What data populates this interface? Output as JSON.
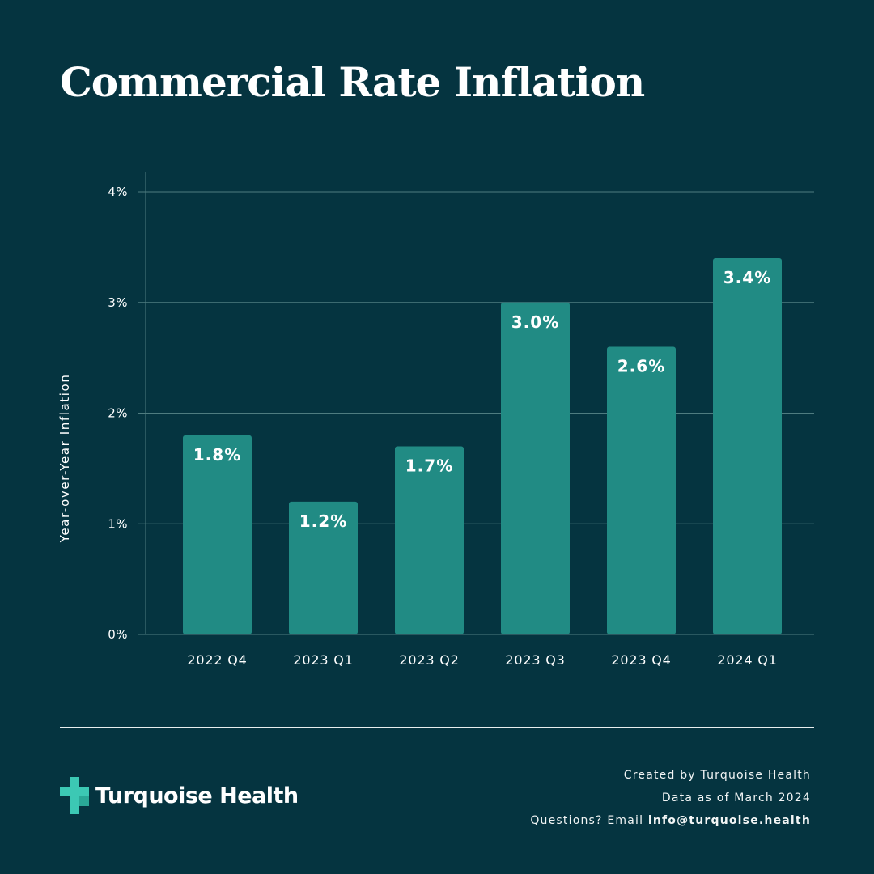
{
  "chart_data": {
    "type": "bar",
    "title": "Commercial Rate Inflation",
    "xlabel": "",
    "ylabel": "Year-over-Year Inflation",
    "categories": [
      "2022 Q4",
      "2023 Q1",
      "2023 Q2",
      "2023 Q3",
      "2023 Q4",
      "2024 Q1"
    ],
    "values": [
      1.8,
      1.2,
      1.7,
      3.0,
      2.6,
      3.4
    ],
    "value_labels": [
      "1.8%",
      "1.2%",
      "1.7%",
      "3.0%",
      "2.6%",
      "3.4%"
    ],
    "ylim": [
      0,
      4
    ],
    "yticks": [
      0,
      1,
      2,
      3,
      4
    ],
    "ytick_labels": [
      "0%",
      "1%",
      "2%",
      "3%",
      "4%"
    ],
    "grid": true,
    "legend": "none"
  },
  "colors": {
    "background": "#053440",
    "bar": "#218b84",
    "grid": "#4f7c80",
    "logo": "#3cc8b4"
  },
  "footer": {
    "logo_text": "Turquoise Health",
    "credit_line": "Created by Turquoise Health",
    "data_line": "Data as of March 2024",
    "questions_label": "Questions?  Email",
    "email": "info@turquoise.health"
  }
}
